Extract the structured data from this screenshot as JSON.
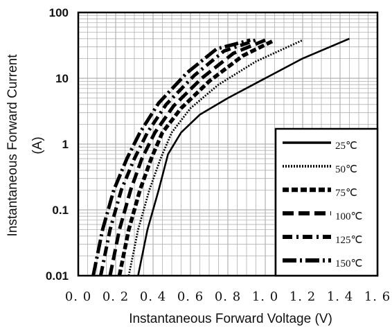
{
  "chart_data": {
    "type": "line",
    "title": "",
    "xlabel": "Instantaneous Forward Voltage (V)",
    "ylabel_line1": "Instantaneous Forward Current",
    "ylabel_line2": "(A)",
    "xlim": [
      0.0,
      1.6
    ],
    "ylim": [
      0.01,
      100
    ],
    "y_scale": "log",
    "grid": true,
    "legend_position": "bottom-right",
    "x_ticks": [
      "0. 0",
      "0. 2",
      "0. 4",
      "0. 6",
      "0. 8",
      "1. 0",
      "1. 2",
      "1. 4",
      "1. 6"
    ],
    "y_ticks": [
      "0.01",
      "0.1",
      "1",
      "10",
      "100"
    ],
    "series": [
      {
        "name": "25℃",
        "x": [
          0.32,
          0.37,
          0.43,
          0.48,
          0.55,
          0.65,
          0.8,
          1.0,
          1.2,
          1.45
        ],
        "y": [
          0.01,
          0.05,
          0.2,
          0.7,
          1.5,
          2.8,
          5.0,
          10,
          20,
          40
        ]
      },
      {
        "name": "50℃",
        "x": [
          0.27,
          0.32,
          0.38,
          0.44,
          0.5,
          0.6,
          0.75,
          0.95,
          1.2
        ],
        "y": [
          0.01,
          0.05,
          0.2,
          0.6,
          1.5,
          3.5,
          8,
          18,
          38
        ]
      },
      {
        "name": "75℃",
        "x": [
          0.22,
          0.27,
          0.33,
          0.39,
          0.45,
          0.55,
          0.7,
          0.88,
          1.05
        ],
        "y": [
          0.01,
          0.05,
          0.2,
          0.6,
          1.5,
          3.5,
          9,
          22,
          38
        ]
      },
      {
        "name": "100℃",
        "x": [
          0.17,
          0.22,
          0.28,
          0.34,
          0.41,
          0.51,
          0.66,
          0.83,
          1.0
        ],
        "y": [
          0.01,
          0.05,
          0.2,
          0.6,
          1.5,
          3.8,
          10,
          24,
          38
        ]
      },
      {
        "name": "125℃",
        "x": [
          0.12,
          0.17,
          0.23,
          0.3,
          0.37,
          0.47,
          0.62,
          0.78,
          0.95
        ],
        "y": [
          0.01,
          0.05,
          0.2,
          0.6,
          1.5,
          4.0,
          11,
          26,
          38
        ]
      },
      {
        "name": "150℃",
        "x": [
          0.08,
          0.13,
          0.19,
          0.26,
          0.33,
          0.43,
          0.58,
          0.74,
          0.92
        ],
        "y": [
          0.01,
          0.05,
          0.2,
          0.6,
          1.5,
          4.2,
          12,
          28,
          38
        ]
      }
    ]
  },
  "styles": {
    "line_color": "#000000",
    "grid_color": "#b0b0b0"
  }
}
